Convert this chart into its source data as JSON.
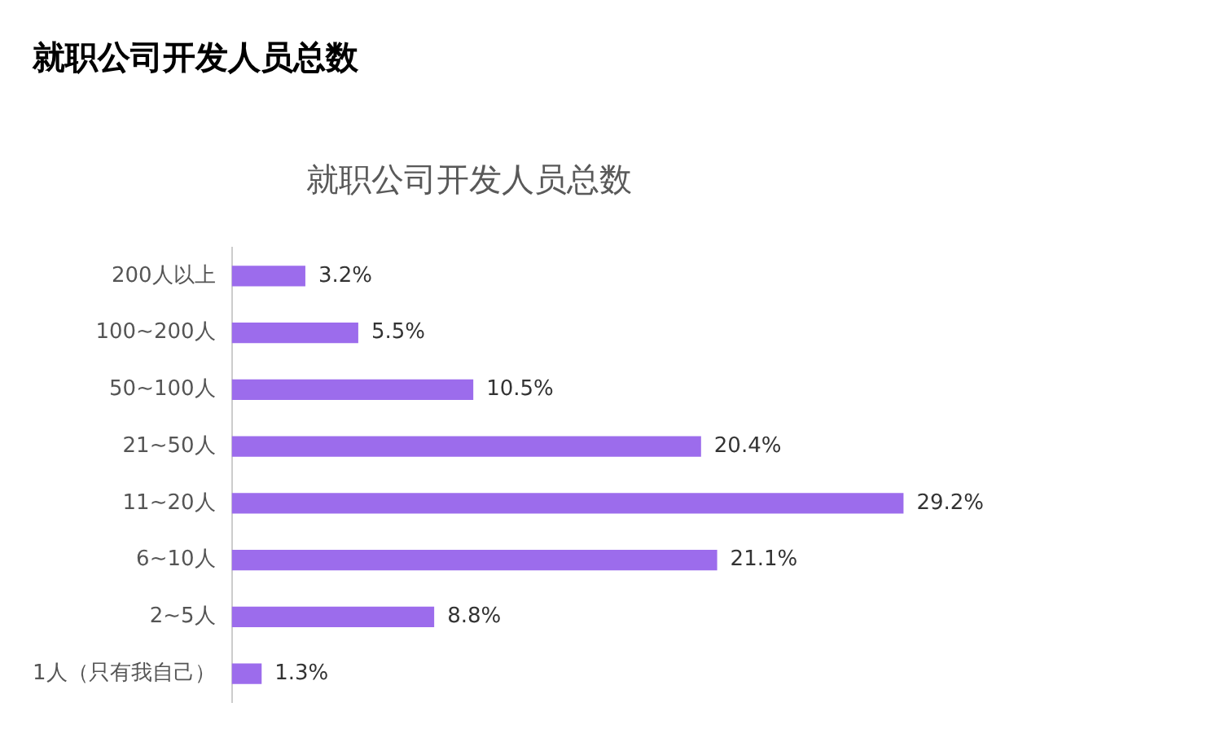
{
  "chart_data": {
    "type": "bar",
    "orientation": "horizontal",
    "title": "就职公司开发人员总数",
    "subtitle": "就职公司开发人员总数",
    "categories": [
      "200人以上",
      "100~200人",
      "50~100人",
      "21~50人",
      "11~20人",
      "6~10人",
      "2~5人",
      "1人（只有我自己）"
    ],
    "values": [
      3.2,
      5.5,
      10.5,
      20.4,
      29.2,
      21.1,
      8.8,
      1.3
    ],
    "value_labels": [
      "3.2%",
      "5.5%",
      "10.5%",
      "20.4%",
      "29.2%",
      "21.1%",
      "8.8%",
      "1.3%"
    ],
    "color": "#9c6cec",
    "grid": false,
    "legend": false,
    "tick_labels": "y"
  }
}
